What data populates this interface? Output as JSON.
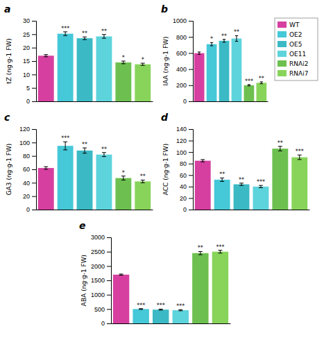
{
  "chart_data": [
    {
      "type": "bar",
      "title": "a",
      "categories": [
        "WT",
        "OE2",
        "OE5",
        "OE11",
        "RNAi2",
        "RNAi7"
      ],
      "values": [
        17.0,
        25.2,
        23.5,
        24.2,
        14.5,
        13.8
      ],
      "errors": [
        0.4,
        0.7,
        0.5,
        0.7,
        0.5,
        0.4
      ],
      "annotations": [
        null,
        "***",
        "**",
        "**",
        "*",
        "*"
      ],
      "colors": [
        "#D63FA0",
        "#45C8D8",
        "#3BBAC5",
        "#5DD4DC",
        "#6DC050",
        "#88D45A"
      ],
      "ylim": [
        0,
        30
      ],
      "yticks": [
        0,
        5,
        10,
        15,
        20,
        25,
        30
      ],
      "ylabel": "tZ (ng·g-1 FW)",
      "tick_labels": "y"
    },
    {
      "type": "bar",
      "title": "b",
      "categories": [
        "WT",
        "OE2",
        "OE5",
        "OE11",
        "RNAi2",
        "RNAi7"
      ],
      "values": [
        598,
        710,
        752,
        780,
        200,
        230
      ],
      "errors": [
        15,
        20,
        18,
        35,
        8,
        12
      ],
      "annotations": [
        null,
        "*",
        "**",
        "**",
        "***",
        "**"
      ],
      "colors": [
        "#D63FA0",
        "#45C8D8",
        "#3BBAC5",
        "#5DD4DC",
        "#6DC050",
        "#88D45A"
      ],
      "ylim": [
        0,
        1000
      ],
      "yticks": [
        0,
        200,
        400,
        600,
        800,
        1000
      ],
      "ylabel": "IAA (ng·g-1 FW)",
      "tick_labels": "y",
      "legend": "right"
    },
    {
      "type": "bar",
      "title": "c",
      "categories": [
        "WT",
        "OE2",
        "OE5",
        "OE11",
        "RNAi2",
        "RNAi7"
      ],
      "values": [
        62,
        95,
        88,
        82,
        47,
        42
      ],
      "errors": [
        2,
        6,
        4,
        3,
        3,
        2
      ],
      "annotations": [
        null,
        "***",
        "**",
        "**",
        "*",
        "**"
      ],
      "colors": [
        "#D63FA0",
        "#45C8D8",
        "#3BBAC5",
        "#5DD4DC",
        "#6DC050",
        "#88D45A"
      ],
      "ylim": [
        0,
        120
      ],
      "yticks": [
        0,
        20,
        40,
        60,
        80,
        100,
        120
      ],
      "ylabel": "GA3 (ng·g-1 FW)",
      "tick_labels": "y"
    },
    {
      "type": "bar",
      "title": "d",
      "categories": [
        "WT",
        "OE2",
        "OE5",
        "OE11",
        "RNAi2",
        "RNAi7"
      ],
      "values": [
        85,
        52,
        44,
        40,
        106,
        91
      ],
      "errors": [
        2,
        3,
        2,
        2,
        4,
        4
      ],
      "annotations": [
        null,
        "**",
        "**",
        "***",
        "**",
        "***"
      ],
      "colors": [
        "#D63FA0",
        "#45C8D8",
        "#3BBAC5",
        "#5DD4DC",
        "#6DC050",
        "#88D45A"
      ],
      "ylim": [
        0,
        140
      ],
      "yticks": [
        0,
        20,
        40,
        60,
        80,
        100,
        120,
        140
      ],
      "ylabel": "ACC (ng·g-1 FW)",
      "tick_labels": "y"
    },
    {
      "type": "bar",
      "title": "e",
      "categories": [
        "WT",
        "OE2",
        "OE5",
        "OE11",
        "RNAi2",
        "RNAi7"
      ],
      "values": [
        1700,
        500,
        480,
        460,
        2450,
        2500
      ],
      "errors": [
        20,
        15,
        18,
        20,
        55,
        50
      ],
      "annotations": [
        null,
        "***",
        "***",
        "***",
        "**",
        "***"
      ],
      "colors": [
        "#D63FA0",
        "#45C8D8",
        "#3BBAC5",
        "#5DD4DC",
        "#6DC050",
        "#88D45A"
      ],
      "ylim": [
        0,
        3000
      ],
      "yticks": [
        0,
        500,
        1000,
        1500,
        2000,
        2500,
        3000
      ],
      "ylabel": "ABA (ng·g-1 FW)",
      "tick_labels": "y"
    }
  ]
}
